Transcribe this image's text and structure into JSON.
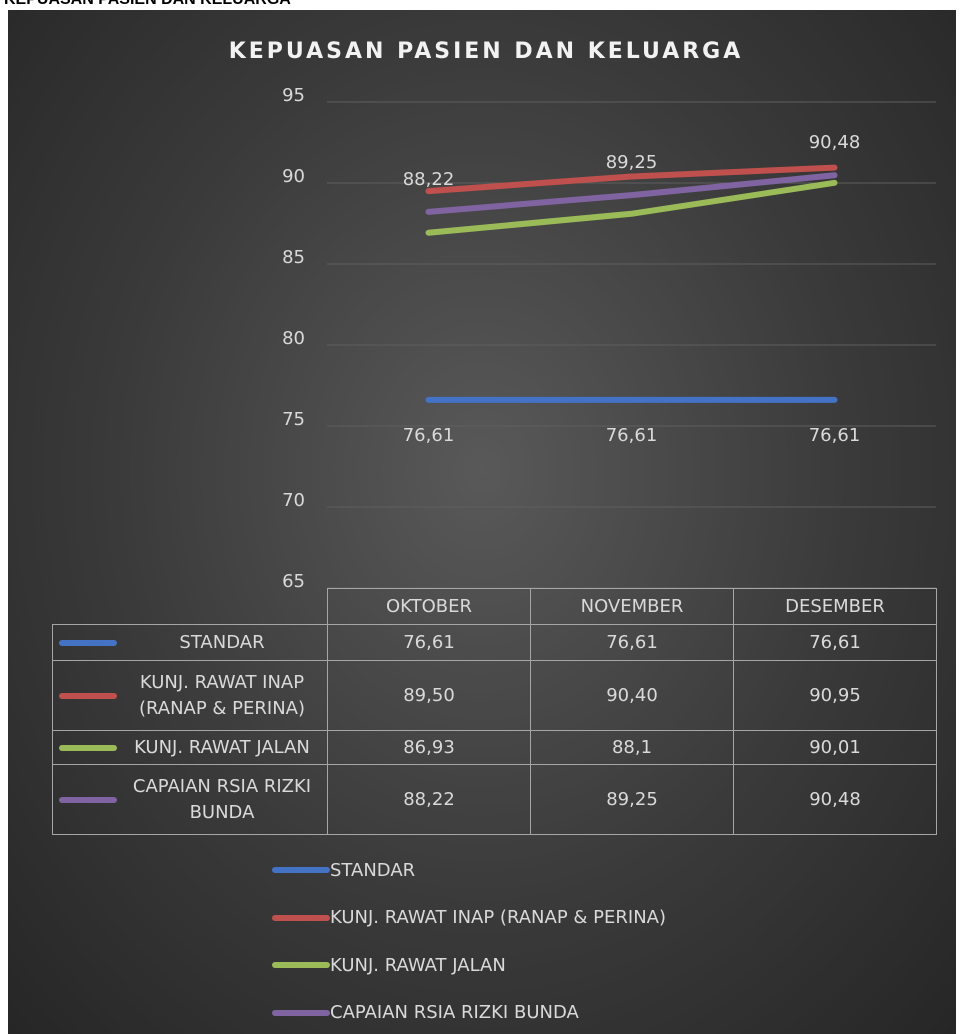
{
  "header": {
    "title": "KEPUASAN PASIEN DAN KELUARGA"
  },
  "chart_data": {
    "type": "line",
    "title": "KEPUASAN PASIEN DAN KELUARGA",
    "categories": [
      "OKTOBER",
      "NOVEMBER",
      "DESEMBER"
    ],
    "series": [
      {
        "name": "STANDAR",
        "color": "#4472c4",
        "values": [
          76.61,
          76.61,
          76.61
        ],
        "value_labels": [
          "76,61",
          "76,61",
          "76,61"
        ],
        "data_labels": "below"
      },
      {
        "name": "KUNJ. RAWAT INAP (RANAP & PERINA)",
        "color": "#c0504d",
        "values": [
          89.5,
          90.4,
          90.95
        ],
        "value_labels": [
          "89,50",
          "90,40",
          "90,95"
        ]
      },
      {
        "name": "KUNJ. RAWAT JALAN",
        "color": "#9bbb59",
        "values": [
          86.93,
          88.1,
          90.01
        ],
        "value_labels": [
          "86,93",
          "88,1",
          "90,01"
        ]
      },
      {
        "name": "CAPAIAN RSIA RIZKI BUNDA",
        "color": "#8064a2",
        "values": [
          88.22,
          89.25,
          90.48
        ],
        "value_labels": [
          "88,22",
          "89,25",
          "90,48"
        ],
        "data_labels": "above"
      }
    ],
    "ylim": [
      65,
      95
    ],
    "yticks": [
      65,
      70,
      75,
      80,
      85,
      90,
      95
    ],
    "grid": true,
    "data_table": true,
    "legend": "bottom"
  }
}
